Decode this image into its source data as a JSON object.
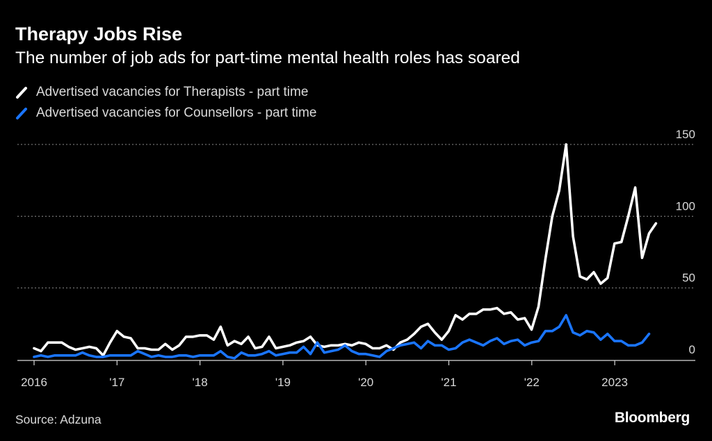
{
  "chart_data": {
    "type": "line",
    "title": "Therapy Jobs Rise",
    "subtitle": "The number of job ads for part-time mental health roles has soared",
    "source": "Source: Adzuna",
    "brand": "Bloomberg",
    "xlabel": "",
    "ylabel": "",
    "x_range": [
      2016.0,
      2024.2
    ],
    "ylim": [
      0,
      150
    ],
    "y_ticks": [
      {
        "value": 0,
        "label": "0"
      },
      {
        "value": 50,
        "label": "50"
      },
      {
        "value": 100,
        "label": "100"
      },
      {
        "value": 150,
        "label": "150"
      }
    ],
    "x_ticks": [
      {
        "value": 2016,
        "label": "2016"
      },
      {
        "value": 2017,
        "label": "'17"
      },
      {
        "value": 2018,
        "label": "'18"
      },
      {
        "value": 2019,
        "label": "'19"
      },
      {
        "value": 2020,
        "label": "'20"
      },
      {
        "value": 2021,
        "label": "'21"
      },
      {
        "value": 2022,
        "label": "'22"
      },
      {
        "value": 2023,
        "label": "2023"
      }
    ],
    "grid": "horizontal dotted",
    "legend_position": "top-left",
    "start": 2016.0,
    "step": 0.0833,
    "series": [
      {
        "name": "Advertised vacancies for Therapists - part time",
        "color": "#ffffff",
        "values": [
          8,
          6,
          12,
          12,
          12,
          9,
          7,
          8,
          9,
          8,
          3,
          12,
          20,
          16,
          15,
          8,
          8,
          7,
          7,
          11,
          7,
          10,
          16,
          16,
          17,
          17,
          14,
          23,
          10,
          13,
          11,
          16,
          8,
          9,
          16,
          8,
          9,
          10,
          12,
          13,
          16,
          10,
          9,
          10,
          10,
          11,
          10,
          12,
          11,
          8,
          8,
          10,
          7,
          12,
          14,
          18,
          23,
          25,
          19,
          14,
          20,
          31,
          28,
          32,
          32,
          35,
          35,
          36,
          32,
          33,
          28,
          29,
          21,
          37,
          70,
          100,
          118,
          150,
          86,
          58,
          56,
          61,
          53,
          57,
          81,
          82,
          100,
          120,
          71,
          88,
          95
        ]
      },
      {
        "name": "Advertised vacancies for Counsellors - part time",
        "color": "#1a75ff",
        "values": [
          2,
          3,
          2,
          3,
          3,
          3,
          3,
          5,
          3,
          2,
          2,
          3,
          3,
          3,
          3,
          6,
          4,
          2,
          3,
          2,
          2,
          3,
          3,
          2,
          3,
          3,
          3,
          6,
          2,
          1,
          5,
          3,
          3,
          4,
          6,
          3,
          4,
          5,
          5,
          9,
          4,
          12,
          5,
          6,
          7,
          10,
          6,
          4,
          4,
          3,
          2,
          6,
          8,
          10,
          11,
          12,
          8,
          13,
          10,
          10,
          7,
          8,
          12,
          14,
          12,
          10,
          13,
          15,
          11,
          13,
          14,
          10,
          12,
          13,
          20,
          20,
          23,
          31,
          19,
          17,
          20,
          19,
          14,
          18,
          13,
          13,
          10,
          10,
          12,
          18
        ]
      }
    ]
  }
}
